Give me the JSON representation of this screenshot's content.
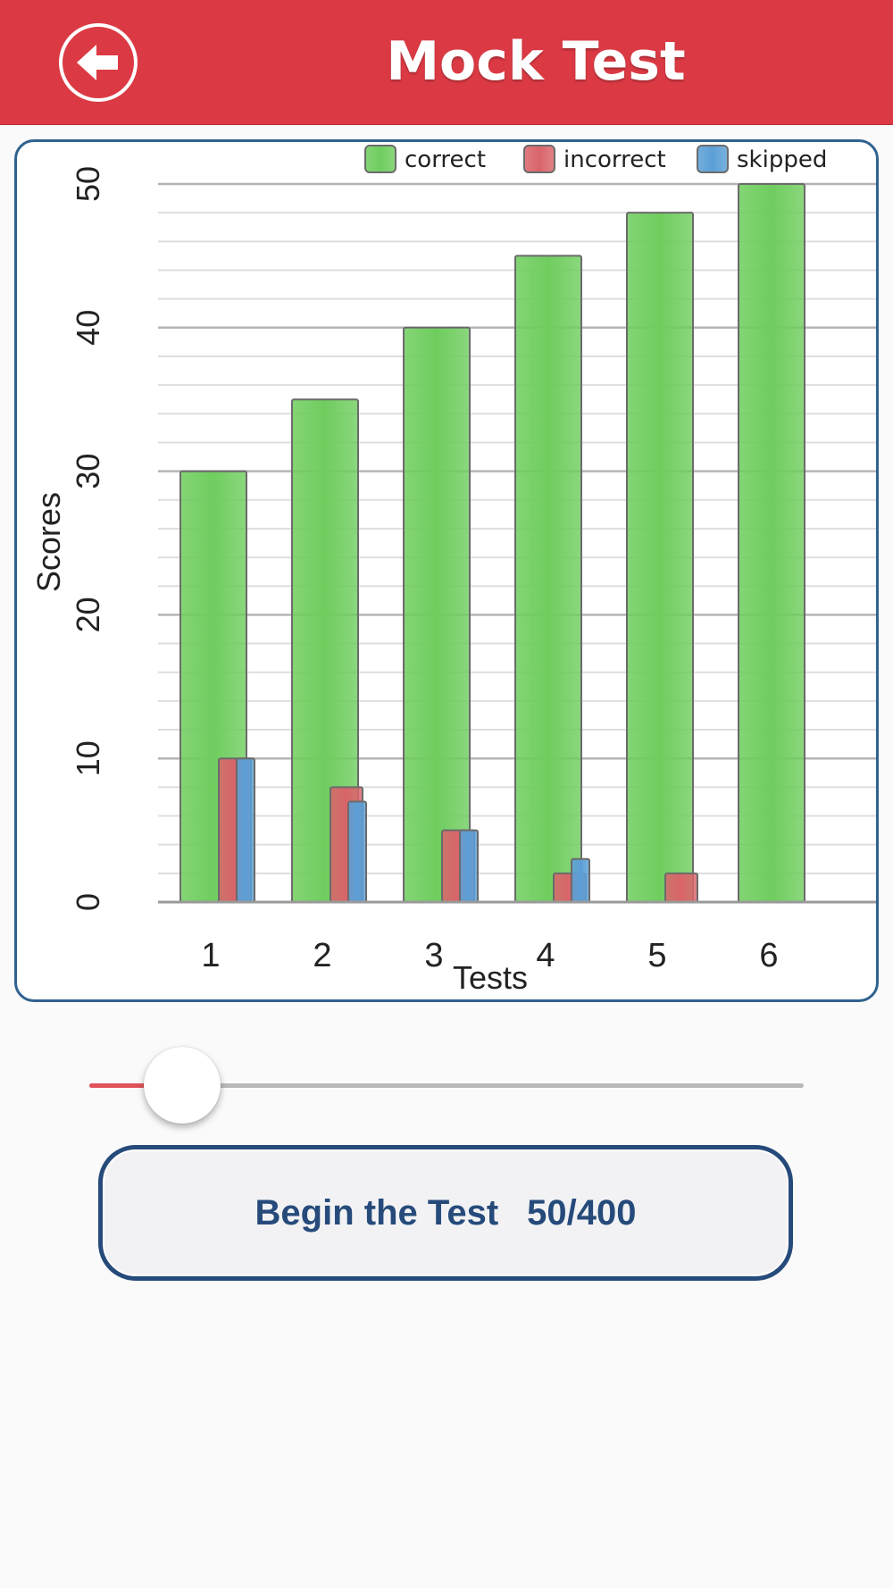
{
  "header": {
    "title": "Mock Test",
    "back_icon": "arrow-left-icon",
    "background": "#db3a44"
  },
  "chart_data": {
    "type": "bar",
    "categories": [
      "1",
      "2",
      "3",
      "4",
      "5",
      "6"
    ],
    "series": [
      {
        "name": "correct",
        "color": "#6fcd5e",
        "values": [
          30,
          35,
          40,
          45,
          48,
          50
        ]
      },
      {
        "name": "incorrect",
        "color": "#d9646a",
        "values": [
          10,
          8,
          5,
          2,
          2,
          0
        ]
      },
      {
        "name": "skipped",
        "color": "#5b9fd6",
        "values": [
          10,
          7,
          5,
          3,
          0,
          0
        ]
      }
    ],
    "xlabel": "Tests",
    "ylabel": "Scores",
    "ylim": [
      0,
      50
    ],
    "yticks": [
      0,
      10,
      20,
      30,
      40,
      50
    ],
    "grid": true,
    "legend": "top-right"
  },
  "slider": {
    "value_fraction": 0.13,
    "fill_color": "#e0535b"
  },
  "begin_button": {
    "label": "Begin the Test",
    "count": "50/400",
    "color": "#264b7b"
  }
}
